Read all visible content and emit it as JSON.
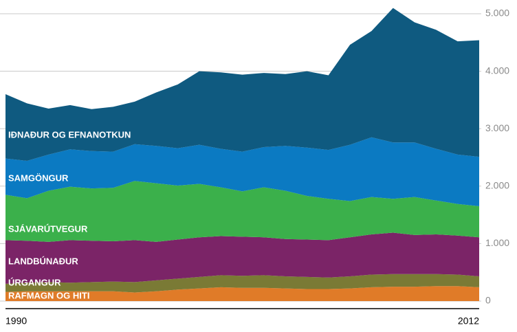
{
  "chart_data": {
    "type": "stacked-area",
    "x": [
      1990,
      1991,
      1992,
      1993,
      1994,
      1995,
      1996,
      1997,
      1998,
      1999,
      2000,
      2001,
      2002,
      2003,
      2004,
      2005,
      2006,
      2007,
      2008,
      2009,
      2010,
      2011,
      2012
    ],
    "xlim": [
      1990,
      2012
    ],
    "xticks": [
      1990,
      2012
    ],
    "ylim": [
      0,
      5000
    ],
    "yticks": [
      0,
      {
        "value": 1000,
        "label": "1.000"
      },
      {
        "value": 2000,
        "label": "2.000"
      },
      {
        "value": 3000,
        "label": "3.000"
      },
      {
        "value": 4000,
        "label": "4.000"
      },
      {
        "value": 5000,
        "label": "5.000"
      }
    ],
    "grid": true,
    "series": [
      {
        "name": "RAFMAGN OG HITI",
        "color": "#e07b28",
        "values": [
          160,
          170,
          170,
          170,
          170,
          170,
          150,
          170,
          200,
          220,
          240,
          230,
          230,
          220,
          210,
          210,
          220,
          240,
          250,
          250,
          260,
          260,
          240
        ]
      },
      {
        "name": "ÚRGANGUR",
        "color": "#7a7a35",
        "values": [
          140,
          150,
          160,
          150,
          160,
          170,
          180,
          190,
          190,
          200,
          210,
          210,
          220,
          210,
          210,
          200,
          210,
          220,
          220,
          220,
          210,
          200,
          190
        ]
      },
      {
        "name": "LANDBÚNAÐUR",
        "color": "#7b2467",
        "values": [
          760,
          730,
          700,
          740,
          720,
          700,
          730,
          670,
          680,
          690,
          680,
          680,
          660,
          650,
          650,
          650,
          680,
          700,
          720,
          680,
          690,
          680,
          680
        ]
      },
      {
        "name": "SJÁVARÚTVEGUR",
        "color": "#3bb04b",
        "values": [
          790,
          740,
          890,
          930,
          910,
          930,
          1030,
          1020,
          940,
          930,
          850,
          790,
          870,
          840,
          760,
          720,
          630,
          650,
          590,
          660,
          590,
          550,
          540
        ]
      },
      {
        "name": "SAMGÖNGUR",
        "color": "#0b7ac2",
        "values": [
          630,
          650,
          630,
          650,
          650,
          630,
          640,
          650,
          650,
          680,
          670,
          690,
          700,
          780,
          840,
          850,
          980,
          1040,
          980,
          950,
          900,
          860,
          860
        ]
      },
      {
        "name": "IÐNAÐUR OG EFNANOTKUN",
        "color": "#0f5a80",
        "values": [
          1120,
          1000,
          800,
          770,
          730,
          780,
          740,
          930,
          1110,
          1280,
          1330,
          1340,
          1290,
          1250,
          1330,
          1300,
          1740,
          1850,
          2340,
          2090,
          2070,
          1970,
          2030
        ]
      }
    ]
  }
}
